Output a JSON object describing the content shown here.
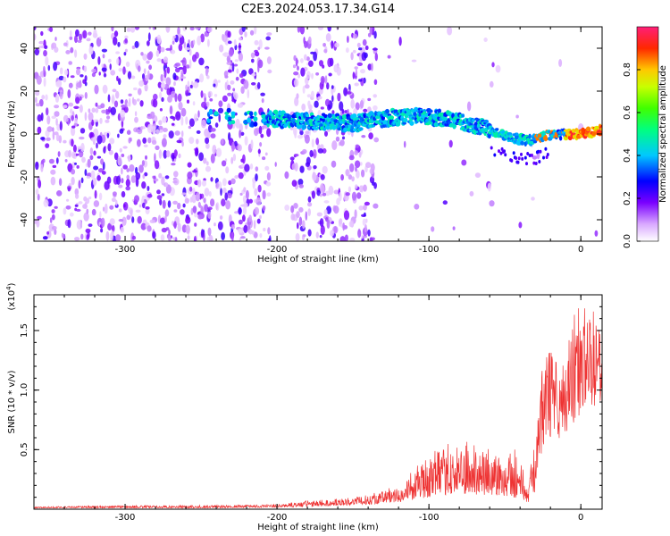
{
  "title": "C2E3.2024.053.17.34.G14",
  "colors": {
    "snr_line": "#ee3333",
    "spectrogram_low": "#8a2be2",
    "axis": "#000000"
  },
  "chart_data": [
    {
      "type": "heatmap",
      "description_hidden": false,
      "xlabel": "Height of straight line (km)",
      "ylabel": "Frequency (Hz)",
      "xlim": [
        -360,
        14
      ],
      "ylim": [
        -50,
        50
      ],
      "xticks": [
        -300,
        -200,
        -100,
        0
      ],
      "yticks": [
        -40,
        -20,
        0,
        20,
        40
      ],
      "colorbar": {
        "label": "Normalized spectral amplitude",
        "range": [
          0,
          1
        ],
        "ticks": [
          0.0,
          0.2,
          0.4,
          0.6,
          0.8
        ],
        "tick_labels": [
          "0.0",
          "0.2",
          "0.4",
          "0.6",
          "0.8"
        ],
        "colormap": "rainbow (violet to red)"
      },
      "noise_regions_km": [
        [
          -360,
          -205
        ],
        [
          -190,
          -150
        ],
        [
          -165,
          -135
        ]
      ],
      "signal_track": {
        "x": [
          -245,
          -205,
          -180,
          -150,
          -120,
          -100,
          -80,
          -65,
          -55,
          -45,
          -35,
          -25,
          -15,
          0,
          14
        ],
        "y": [
          8,
          7,
          6,
          5,
          8,
          8,
          6,
          3,
          1,
          -2,
          -3,
          -1,
          0,
          0,
          2
        ],
        "peak_amplitude_x": [
          -10,
          14
        ]
      }
    },
    {
      "type": "line",
      "xlabel": "Height of straight line (km)",
      "ylabel": "SNR (10 * v/v)",
      "y_multiplier_label": "(x10",
      "y_multiplier_exp": "4",
      "xlim": [
        -360,
        14
      ],
      "ylim": [
        0,
        18000
      ],
      "xticks": [
        -300,
        -200,
        -100,
        0
      ],
      "yticks": [
        5000,
        10000,
        15000
      ],
      "ytick_labels": [
        "0.5",
        "1.0",
        "1.5"
      ],
      "envelope": {
        "x": [
          -360,
          -300,
          -250,
          -200,
          -180,
          -160,
          -140,
          -120,
          -110,
          -100,
          -90,
          -80,
          -70,
          -60,
          -50,
          -40,
          -35,
          -30,
          -28,
          -25,
          -20,
          -15,
          -10,
          -5,
          0,
          5,
          10,
          14
        ],
        "y": [
          200,
          300,
          300,
          400,
          700,
          800,
          1200,
          1800,
          3000,
          4500,
          5000,
          5300,
          5000,
          4800,
          5000,
          4500,
          2000,
          6000,
          9000,
          11000,
          14000,
          11000,
          12000,
          17000,
          15000,
          16000,
          17000,
          14000
        ],
        "baseline": [
          100,
          100,
          100,
          150,
          200,
          300,
          400,
          600,
          800,
          1000,
          1200,
          1300,
          1200,
          1100,
          1100,
          900,
          500,
          1500,
          4000,
          5000,
          6000,
          5500,
          6500,
          7000,
          8000,
          9000,
          8500,
          9000
        ]
      }
    }
  ]
}
